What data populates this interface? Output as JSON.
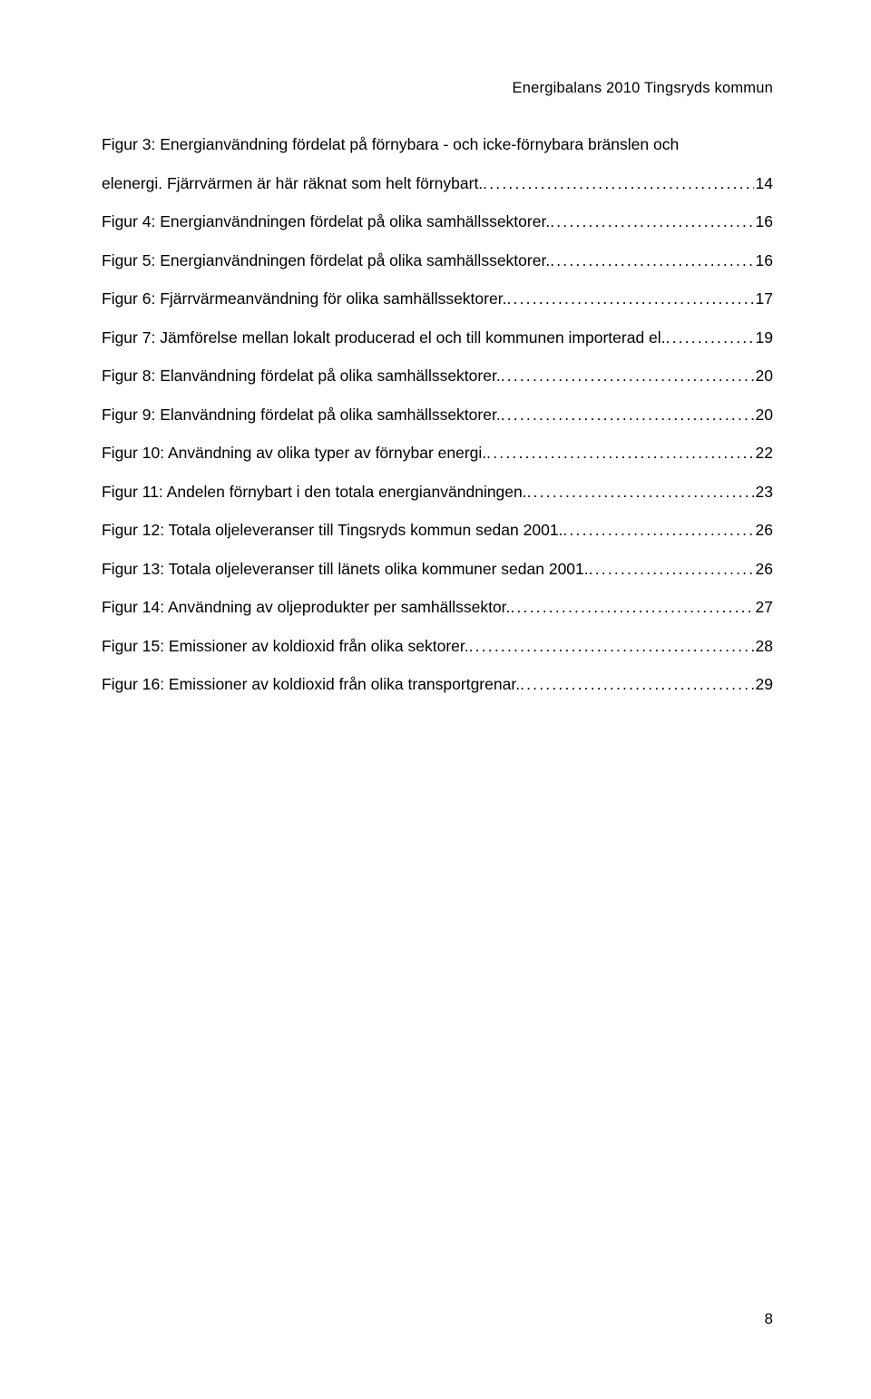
{
  "header": "Energibalans 2010 Tingsryds kommun",
  "pageNumber": "8",
  "entries": [
    {
      "text1": "Figur 3: Energianvändning fördelat på förnybara - och icke-förnybara bränslen och",
      "text2": "elenergi. Fjärrvärmen är här räknat som helt förnybart.",
      "page": "14"
    },
    {
      "text1": "Figur 4: Energianvändningen fördelat på olika samhällssektorer.",
      "page": "16"
    },
    {
      "text1": "Figur 5: Energianvändningen fördelat på olika samhällssektorer.",
      "page": "16"
    },
    {
      "text1": "Figur 6: Fjärrvärmeanvändning för olika samhällssektorer.",
      "page": "17"
    },
    {
      "text1": "Figur 7: Jämförelse mellan lokalt producerad el och till kommunen importerad el.",
      "page": "19"
    },
    {
      "text1": "Figur 8: Elanvändning fördelat på olika samhällssektorer.",
      "page": "20"
    },
    {
      "text1": "Figur 9: Elanvändning fördelat på olika samhällssektorer.",
      "page": "20"
    },
    {
      "text1": "Figur 10: Användning av olika typer av förnybar energi.",
      "page": "22"
    },
    {
      "text1": "Figur 11: Andelen förnybart i den totala energianvändningen.",
      "page": "23"
    },
    {
      "text1": "Figur 12: Totala oljeleveranser till Tingsryds kommun sedan 2001.",
      "page": "26"
    },
    {
      "text1": "Figur 13: Totala oljeleveranser till länets olika kommuner sedan 2001.",
      "page": "26"
    },
    {
      "text1": "Figur 14: Användning av oljeprodukter per samhällssektor.",
      "page": "27"
    },
    {
      "text1": "Figur 15: Emissioner av koldioxid från olika sektorer.",
      "page": "28"
    },
    {
      "text1": "Figur 16: Emissioner av koldioxid från olika transportgrenar.",
      "page": "29"
    }
  ]
}
